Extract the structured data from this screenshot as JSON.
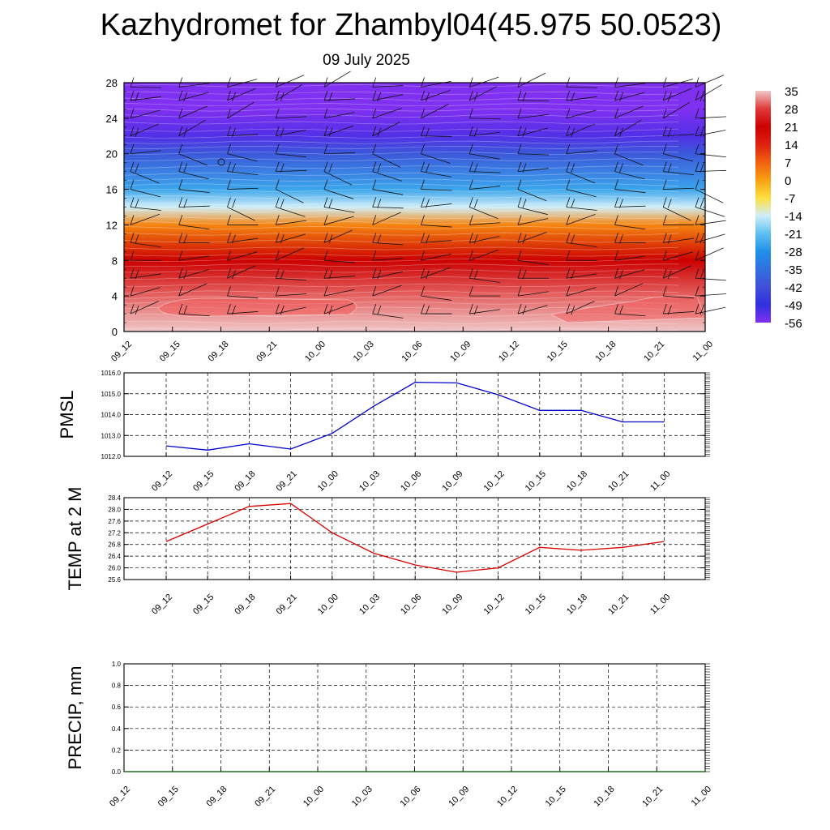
{
  "title": "Kazhydromet for Zhambyl04(45.975 50.0523)",
  "subtitle": "09 July 2025",
  "time_labels": [
    "09_12",
    "09_15",
    "09_18",
    "09_21",
    "10_00",
    "10_03",
    "10_06",
    "10_09",
    "10_12",
    "10_15",
    "10_18",
    "10_21",
    "11_00"
  ],
  "chart_data": [
    {
      "type": "heatmap",
      "name_hint": "vertical cross-section (temperature shading with wind barbs)",
      "x": [
        "09_12",
        "09_15",
        "09_18",
        "09_21",
        "10_00",
        "10_03",
        "10_06",
        "10_09",
        "10_12",
        "10_15",
        "10_18",
        "10_21",
        "11_00"
      ],
      "y_ticks": [
        0,
        4,
        8,
        12,
        16,
        20,
        24,
        28
      ],
      "ylim": [
        0,
        28
      ],
      "colorbar_levels": [
        35,
        28,
        21,
        14,
        7,
        0,
        -7,
        -14,
        -21,
        -28,
        -35,
        -42,
        -49,
        -56
      ],
      "colorbar_colors": [
        "#f0c8c8",
        "#e03a3a",
        "#cc0000",
        "#e02010",
        "#f06010",
        "#f8a010",
        "#fde040",
        "#d0eef8",
        "#60c0f0",
        "#2090e8",
        "#3070e0",
        "#4050d8",
        "#3030e0",
        "#8030f0"
      ],
      "profile_by_height": [
        {
          "level": 0,
          "value": 35
        },
        {
          "level": 4,
          "value": 30
        },
        {
          "level": 8,
          "value": 21
        },
        {
          "level": 12,
          "value": 3
        },
        {
          "level": 14,
          "value": -14
        },
        {
          "level": 16,
          "value": -25
        },
        {
          "level": 20,
          "value": -40
        },
        {
          "level": 22,
          "value": -52
        },
        {
          "level": 25,
          "value": -56
        },
        {
          "level": 28,
          "value": -56
        }
      ],
      "grid": false
    },
    {
      "type": "line",
      "ylabel": "PMSL",
      "x": [
        "09_12",
        "09_15",
        "09_18",
        "09_21",
        "10_00",
        "10_03",
        "10_06",
        "10_09",
        "10_12",
        "10_15",
        "10_18",
        "10_21",
        "11_00"
      ],
      "ylim": [
        1012.0,
        1016.0
      ],
      "y_ticks": [
        "1012.0",
        "1013.0",
        "1014.0",
        "1015.0",
        "1016.0"
      ],
      "series": [
        {
          "values": [
            1012.5,
            1012.3,
            1012.6,
            1012.35,
            1013.1,
            1014.4,
            1015.55,
            1015.52,
            1014.95,
            1014.2,
            1014.2,
            1013.65,
            1013.65
          ],
          "color": "#0000cc"
        }
      ],
      "grid": true
    },
    {
      "type": "line",
      "ylabel": "TEMP at 2 M",
      "x": [
        "09_12",
        "09_15",
        "09_18",
        "09_21",
        "10_00",
        "10_03",
        "10_06",
        "10_09",
        "10_12",
        "10_15",
        "10_18",
        "10_21",
        "11_00"
      ],
      "ylim": [
        25.6,
        28.4
      ],
      "y_ticks": [
        "25.6",
        "26.0",
        "26.4",
        "26.8",
        "27.2",
        "27.6",
        "28.0",
        "28.4"
      ],
      "series": [
        {
          "values": [
            26.9,
            27.5,
            28.1,
            28.2,
            27.2,
            26.5,
            26.1,
            25.85,
            26.0,
            26.7,
            26.6,
            26.7,
            26.9
          ],
          "color": "#dd0000"
        }
      ],
      "grid": true
    },
    {
      "type": "line",
      "ylabel": "PRECIP, mm",
      "x": [
        "09_12",
        "09_15",
        "09_18",
        "09_21",
        "10_00",
        "10_03",
        "10_06",
        "10_09",
        "10_12",
        "10_15",
        "10_18",
        "10_21",
        "11_00"
      ],
      "ylim": [
        0.0,
        1.0
      ],
      "y_ticks": [
        "0.0",
        "0.2",
        "0.4",
        "0.6",
        "0.8",
        "1.0"
      ],
      "series": [
        {
          "values": [
            0,
            0,
            0,
            0,
            0,
            0,
            0,
            0,
            0,
            0,
            0,
            0,
            0
          ],
          "color": "#006400"
        }
      ],
      "grid": true
    }
  ]
}
